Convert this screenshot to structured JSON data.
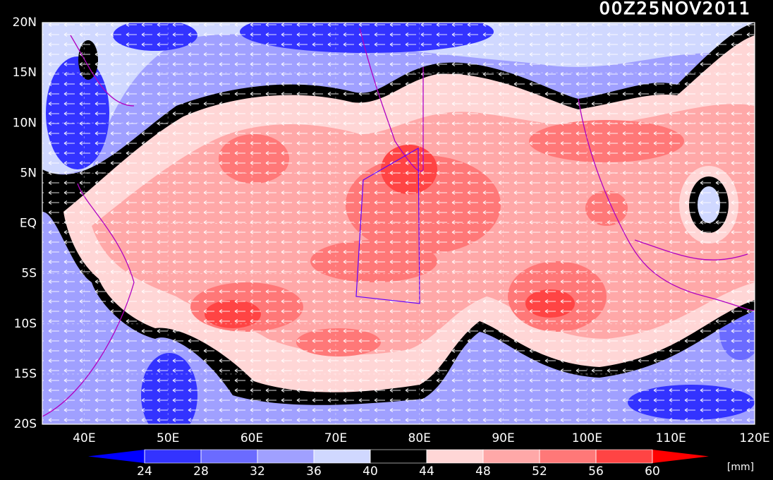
{
  "title": "00Z25NOV2011",
  "lat_labels": [
    "20N",
    "15N",
    "10N",
    "5N",
    "EQ",
    "5S",
    "10S",
    "15S",
    "20S"
  ],
  "lon_labels": [
    "40E",
    "50E",
    "60E",
    "70E",
    "80E",
    "90E",
    "100E",
    "110E",
    "120E"
  ],
  "colorbar": {
    "levels": [
      24,
      28,
      32,
      36,
      40,
      44,
      48,
      52,
      56,
      60
    ],
    "colors": [
      "#0000ff",
      "#3333ff",
      "#6b6bff",
      "#a0a0ff",
      "#d0d8ff",
      "#000000",
      "#ffd6d6",
      "#ffa8a8",
      "#ff7878",
      "#ff4444",
      "#ff0000"
    ],
    "unit": "[mm]"
  }
}
